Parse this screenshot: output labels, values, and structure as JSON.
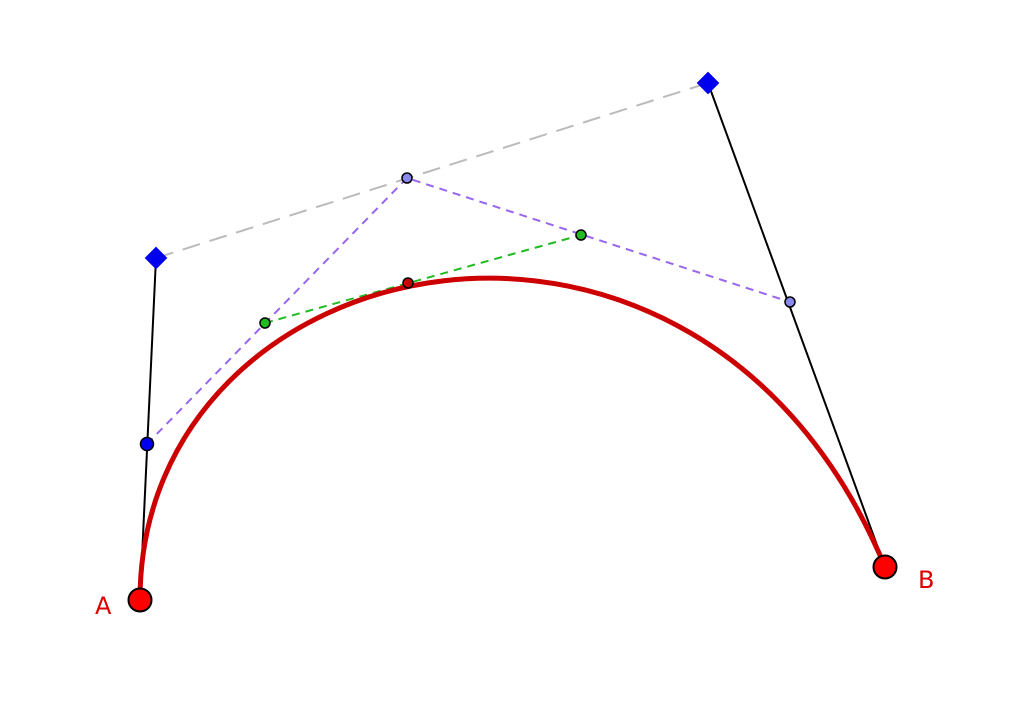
{
  "diagram": {
    "type": "cubic-bezier-de-casteljau",
    "points": {
      "A": {
        "label": "A"
      },
      "B": {
        "label": "B"
      }
    },
    "colors": {
      "curve": "#cc0000",
      "endpoint_fill": "#ff0000",
      "label": "#dd0000",
      "control_point": "#0000ee",
      "control_leg": "#000000",
      "control_polygon_dash": "#bbbbbb",
      "first_level_dash": "#9966ee",
      "first_level_point": "#8888ee",
      "second_level_dash": "#22bb22",
      "second_level_point": "#22bb22",
      "curve_point": "#cc0000",
      "leg_point": "#0000ee"
    },
    "icons": {
      "endpoint": "circle",
      "control_point": "diamond",
      "construction_point": "small-circle"
    }
  }
}
